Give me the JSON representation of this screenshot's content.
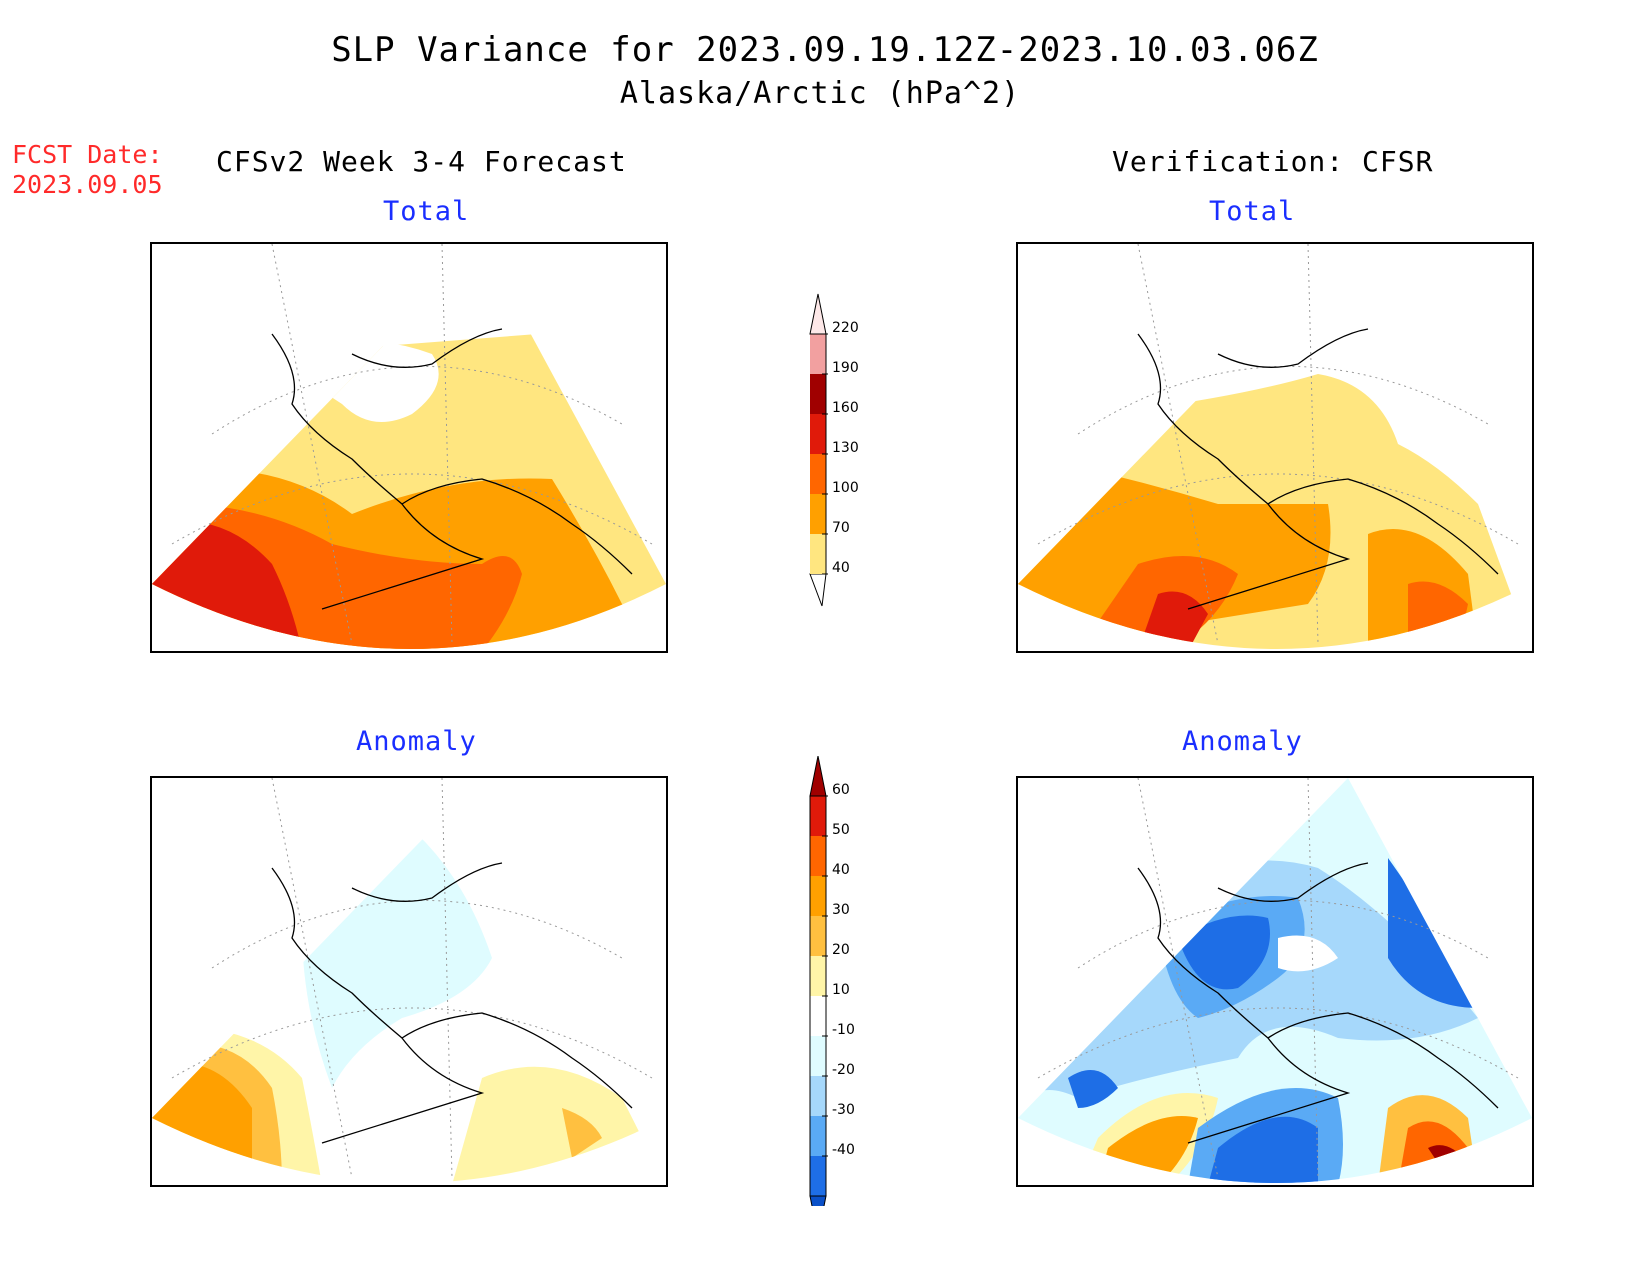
{
  "title": {
    "line1": "SLP Variance for 2023.09.19.12Z-2023.10.03.06Z",
    "line2": "Alaska/Arctic (hPa^2)"
  },
  "forecast_date": {
    "label": "FCST Date:",
    "value": "2023.09.05"
  },
  "columns": {
    "left_heading": "CFSv2 Week 3-4 Forecast",
    "right_heading": "Verification: CFSR"
  },
  "panels": {
    "forecast_total": {
      "label": "Total"
    },
    "verification_total": {
      "label": "Total"
    },
    "forecast_anomaly": {
      "label": "Anomaly"
    },
    "verification_anomaly": {
      "label": "Anomaly"
    }
  },
  "colorbars": {
    "total": {
      "ticks": [
        "40",
        "70",
        "100",
        "130",
        "160",
        "190",
        "220"
      ],
      "colors": [
        "#ffe680",
        "#ffa000",
        "#ff6600",
        "#e01a0a",
        "#a00000",
        "#f2a0a0",
        "#fde8e8"
      ]
    },
    "anomaly": {
      "ticks": [
        "60",
        "50",
        "40",
        "30",
        "20",
        "10",
        "-10",
        "-20",
        "-30",
        "-40"
      ],
      "colors": [
        "#a00000",
        "#e01a0a",
        "#ff6600",
        "#ffa000",
        "#ffc040",
        "#fff5a8",
        "#ffffff",
        "#dffcff",
        "#a6d8fb",
        "#5aaaf5",
        "#1e6ee6",
        "#0a50c8"
      ]
    }
  }
}
